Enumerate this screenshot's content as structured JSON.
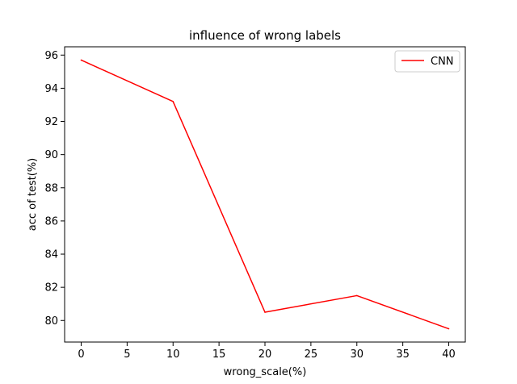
{
  "chart_data": {
    "type": "line",
    "title": "influence of wrong labels",
    "xlabel": "wrong_scale(%)",
    "ylabel": "acc of test(%)",
    "x": [
      0,
      10,
      20,
      30,
      40
    ],
    "series": [
      {
        "name": "CNN",
        "values": [
          95.7,
          93.2,
          80.5,
          81.5,
          79.5
        ],
        "color": "#ff0000"
      }
    ],
    "xlim": [
      -1.8,
      41.8
    ],
    "ylim": [
      78.7,
      96.5
    ],
    "xticks": [
      "0",
      "5",
      "10",
      "15",
      "20",
      "25",
      "30",
      "35",
      "40"
    ],
    "yticks": [
      "80",
      "82",
      "84",
      "86",
      "88",
      "90",
      "92",
      "94",
      "96"
    ],
    "grid": false,
    "legend_position": "top-right"
  }
}
